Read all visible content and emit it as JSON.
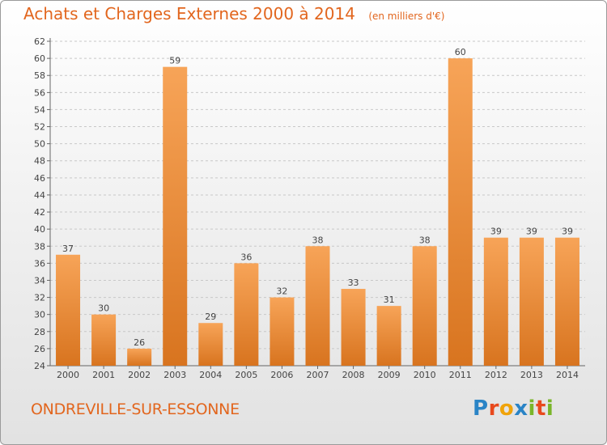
{
  "title": "Achats et Charges Externes 2000 à 2014",
  "unit_note": "(en milliers d'€)",
  "town": "ONDREVILLE-SUR-ESSONNE",
  "logo": {
    "text": "Proxiti",
    "letter_colors": [
      "#2a84c6",
      "#e8491d",
      "#f0a30a",
      "#2a84c6",
      "#7ab52a",
      "#e8491d",
      "#7ab52a"
    ]
  },
  "colors": {
    "accent": "#e2661e",
    "bar_light": "#f7a458",
    "bar_dark": "#d8741f",
    "grid": "#c8c8c8"
  },
  "chart_data": {
    "type": "bar",
    "categories": [
      "2000",
      "2001",
      "2002",
      "2003",
      "2004",
      "2005",
      "2006",
      "2007",
      "2008",
      "2009",
      "2010",
      "2011",
      "2012",
      "2013",
      "2014"
    ],
    "values": [
      37,
      30,
      26,
      59,
      29,
      36,
      32,
      38,
      33,
      31,
      38,
      60,
      39,
      39,
      39
    ],
    "ylim": [
      24,
      62
    ],
    "yticks": [
      24,
      26,
      28,
      30,
      32,
      34,
      36,
      38,
      40,
      42,
      44,
      46,
      48,
      50,
      52,
      54,
      56,
      58,
      60,
      62
    ],
    "grid": "horizontal dashed",
    "xlabel": "",
    "ylabel": ""
  }
}
